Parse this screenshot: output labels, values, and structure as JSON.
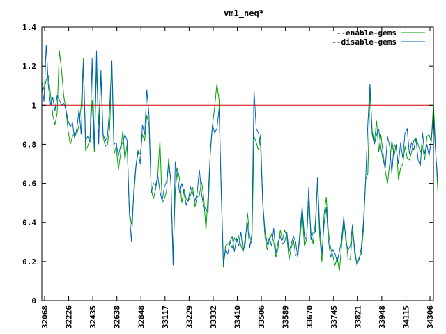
{
  "chart_data": {
    "type": "line",
    "title": "vm1_neq*",
    "xlabel": "",
    "ylabel": "",
    "ylim": [
      0,
      1.4
    ],
    "yticks": [
      0,
      0.2,
      0.4,
      0.6,
      0.8,
      1,
      1.2,
      1.4
    ],
    "ytick_labels": [
      "0",
      "0.2",
      "0.4",
      "0.6",
      "0.8",
      "1",
      "1.2",
      "1.4"
    ],
    "xtick_labels": [
      "32068",
      "32226",
      "32435",
      "32638",
      "32848",
      "33117",
      "33229",
      "33332",
      "33410",
      "33506",
      "33589",
      "33670",
      "33745",
      "33821",
      "33948",
      "34115",
      "34306"
    ],
    "grid": false,
    "legend_position": "top-right",
    "reference_line": {
      "y": 1.0,
      "color": "#cc0000"
    },
    "sample_count": 180,
    "series": [
      {
        "name": "--enable-gems",
        "color": "#00a000",
        "values": [
          1.12,
          1.08,
          1.13,
          1.15,
          1.05,
          0.95,
          0.9,
          0.96,
          1.28,
          1.18,
          1.05,
          0.98,
          0.87,
          0.8,
          0.84,
          0.86,
          0.85,
          0.9,
          1.0,
          1.24,
          0.77,
          0.79,
          0.83,
          1.03,
          0.76,
          1.19,
          0.9,
          1.15,
          0.84,
          0.79,
          0.8,
          0.88,
          1.2,
          0.75,
          0.79,
          0.67,
          0.75,
          0.87,
          0.72,
          0.8,
          0.46,
          0.39,
          0.53,
          0.68,
          0.76,
          0.75,
          0.85,
          0.82,
          0.95,
          0.9,
          0.57,
          0.52,
          0.57,
          0.64,
          0.82,
          0.5,
          0.52,
          0.56,
          0.73,
          0.6,
          0.22,
          0.56,
          0.68,
          0.62,
          0.5,
          0.57,
          0.52,
          0.51,
          0.54,
          0.58,
          0.48,
          0.53,
          0.54,
          0.61,
          0.53,
          0.36,
          0.54,
          0.75,
          0.9,
          0.99,
          1.11,
          1.03,
          0.55,
          0.17,
          0.28,
          0.29,
          0.3,
          0.27,
          0.32,
          0.3,
          0.33,
          0.28,
          0.25,
          0.29,
          0.45,
          0.33,
          0.29,
          0.84,
          0.81,
          0.77,
          0.85,
          0.49,
          0.33,
          0.26,
          0.31,
          0.34,
          0.3,
          0.22,
          0.27,
          0.36,
          0.31,
          0.36,
          0.33,
          0.21,
          0.27,
          0.31,
          0.23,
          0.24,
          0.32,
          0.45,
          0.28,
          0.31,
          0.51,
          0.35,
          0.29,
          0.4,
          0.6,
          0.33,
          0.2,
          0.44,
          0.53,
          0.35,
          0.27,
          0.23,
          0.18,
          0.22,
          0.15,
          0.28,
          0.4,
          0.33,
          0.21,
          0.21,
          0.36,
          0.27,
          0.18,
          0.22,
          0.24,
          0.36,
          0.62,
          0.65,
          1.07,
          0.87,
          0.81,
          0.92,
          0.76,
          0.85,
          0.75,
          0.66,
          0.6,
          0.7,
          0.82,
          0.74,
          0.8,
          0.62,
          0.68,
          0.7,
          0.79,
          0.73,
          0.72,
          0.76,
          0.82,
          0.83,
          0.8,
          0.76,
          0.79,
          0.72,
          0.84,
          0.85,
          0.81,
          1.01,
          0.78,
          0.56
        ]
      },
      {
        "name": "--disable-gems",
        "color": "#0060c0",
        "values": [
          1.1,
          1.02,
          1.31,
          1.1,
          1.0,
          1.04,
          0.97,
          1.05,
          1.03,
          1.0,
          1.01,
          0.98,
          0.92,
          0.89,
          0.91,
          0.83,
          0.88,
          0.98,
          0.85,
          1.22,
          0.82,
          0.84,
          0.81,
          1.24,
          0.78,
          1.28,
          0.8,
          1.18,
          0.85,
          0.82,
          0.84,
          0.99,
          1.23,
          0.8,
          0.81,
          0.74,
          0.79,
          0.81,
          0.85,
          0.82,
          0.45,
          0.3,
          0.56,
          0.69,
          0.77,
          0.7,
          0.9,
          0.85,
          1.08,
          0.95,
          0.55,
          0.6,
          0.59,
          0.64,
          0.56,
          0.51,
          0.58,
          0.61,
          0.7,
          0.62,
          0.18,
          0.71,
          0.64,
          0.55,
          0.6,
          0.55,
          0.49,
          0.52,
          0.58,
          0.55,
          0.51,
          0.55,
          0.67,
          0.55,
          0.48,
          0.47,
          0.45,
          0.77,
          0.9,
          0.86,
          0.88,
          0.98,
          0.57,
          0.19,
          0.26,
          0.24,
          0.3,
          0.33,
          0.25,
          0.32,
          0.28,
          0.35,
          0.25,
          0.32,
          0.4,
          0.27,
          0.34,
          1.08,
          0.88,
          0.86,
          0.79,
          0.5,
          0.36,
          0.29,
          0.32,
          0.28,
          0.37,
          0.24,
          0.3,
          0.33,
          0.29,
          0.3,
          0.35,
          0.25,
          0.29,
          0.33,
          0.3,
          0.22,
          0.36,
          0.48,
          0.33,
          0.31,
          0.58,
          0.31,
          0.35,
          0.35,
          0.63,
          0.38,
          0.24,
          0.39,
          0.48,
          0.31,
          0.22,
          0.26,
          0.24,
          0.2,
          0.25,
          0.31,
          0.43,
          0.3,
          0.26,
          0.28,
          0.39,
          0.24,
          0.19,
          0.21,
          0.27,
          0.4,
          0.62,
          0.9,
          1.11,
          0.85,
          0.8,
          0.85,
          0.88,
          0.78,
          0.72,
          0.68,
          0.84,
          0.79,
          0.65,
          0.8,
          0.78,
          0.7,
          0.81,
          0.73,
          0.86,
          0.88,
          0.75,
          0.81,
          0.77,
          0.83,
          0.72,
          0.69,
          0.86,
          0.75,
          0.8,
          0.74,
          0.82,
          0.95,
          0.76,
          0.61
        ]
      }
    ]
  }
}
